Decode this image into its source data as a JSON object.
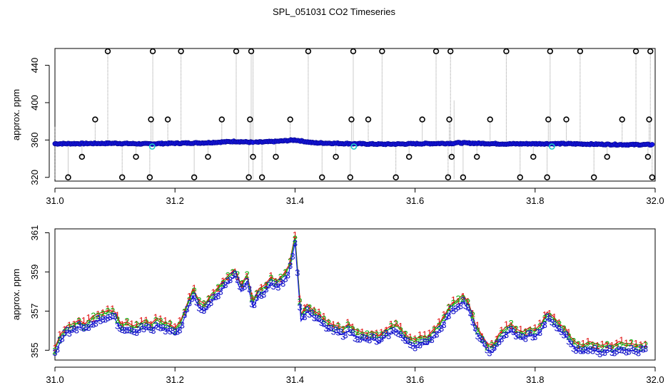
{
  "title": "SPL_051031  CO2 Timeseries",
  "colors": {
    "axis": "#000000",
    "blue_series": "#1414e6",
    "green_point": "#10b010",
    "cyan_point": "#20c8c8",
    "outlier": "#000000",
    "spike_line": "#9a9a9a",
    "digit1": "#e01010",
    "digit2": "#10b010",
    "digit3": "#1414c8"
  },
  "chart_data": [
    {
      "type": "scatter",
      "panel": "top",
      "title": "",
      "xlabel": "",
      "ylabel": "approx. ppm",
      "xlim": [
        31.0,
        32.0
      ],
      "ylim": [
        316,
        458
      ],
      "xticks": [
        31.0,
        31.2,
        31.4,
        31.6,
        31.8,
        32.0
      ],
      "xtick_labels": [
        "31.0",
        "31.2",
        "31.4",
        "31.6",
        "31.8",
        "32.0"
      ],
      "yticks": [
        320,
        360,
        400,
        440
      ],
      "ytick_labels": [
        "320",
        "360",
        "400",
        "440"
      ],
      "segments": [
        {
          "x_start": 31.0,
          "x_end": 31.33,
          "baseline": [
            [
              31.0,
              356.0
            ],
            [
              31.05,
              356.2
            ],
            [
              31.1,
              356.5
            ],
            [
              31.15,
              355.8
            ],
            [
              31.2,
              356.5
            ],
            [
              31.25,
              357.0
            ],
            [
              31.3,
              358.5
            ],
            [
              31.33,
              357.5
            ]
          ]
        },
        {
          "x_start": 31.335,
          "x_end": 31.665,
          "baseline": [
            [
              31.335,
              357.5
            ],
            [
              31.37,
              358.5
            ],
            [
              31.4,
              360.0
            ],
            [
              31.43,
              357.0
            ],
            [
              31.5,
              356.0
            ],
            [
              31.55,
              355.5
            ],
            [
              31.6,
              356.0
            ],
            [
              31.665,
              356.5
            ]
          ]
        },
        {
          "x_start": 31.668,
          "x_end": 31.995,
          "baseline": [
            [
              31.668,
              357.0
            ],
            [
              31.7,
              356.5
            ],
            [
              31.75,
              355.8
            ],
            [
              31.8,
              356.0
            ],
            [
              31.85,
              356.0
            ],
            [
              31.9,
              355.5
            ],
            [
              31.95,
              355.0
            ],
            [
              31.995,
              355.0
            ]
          ]
        }
      ],
      "outliers": [
        {
          "x": 31.022,
          "y": 320
        },
        {
          "x": 31.045,
          "y": 342
        },
        {
          "x": 31.067,
          "y": 382
        },
        {
          "x": 31.088,
          "y": 455
        },
        {
          "x": 31.112,
          "y": 320
        },
        {
          "x": 31.135,
          "y": 342
        },
        {
          "x": 31.158,
          "y": 320
        },
        {
          "x": 31.16,
          "y": 382
        },
        {
          "x": 31.163,
          "y": 455
        },
        {
          "x": 31.188,
          "y": 382
        },
        {
          "x": 31.21,
          "y": 455
        },
        {
          "x": 31.232,
          "y": 320
        },
        {
          "x": 31.255,
          "y": 342
        },
        {
          "x": 31.278,
          "y": 382
        },
        {
          "x": 31.302,
          "y": 455
        },
        {
          "x": 31.323,
          "y": 320
        },
        {
          "x": 31.325,
          "y": 382
        },
        {
          "x": 31.327,
          "y": 455
        },
        {
          "x": 31.33,
          "y": 342
        },
        {
          "x": 31.345,
          "y": 320
        },
        {
          "x": 31.368,
          "y": 342
        },
        {
          "x": 31.392,
          "y": 382
        },
        {
          "x": 31.422,
          "y": 455
        },
        {
          "x": 31.445,
          "y": 320
        },
        {
          "x": 31.468,
          "y": 342
        },
        {
          "x": 31.492,
          "y": 320
        },
        {
          "x": 31.494,
          "y": 382
        },
        {
          "x": 31.497,
          "y": 455
        },
        {
          "x": 31.522,
          "y": 382
        },
        {
          "x": 31.545,
          "y": 455
        },
        {
          "x": 31.568,
          "y": 320
        },
        {
          "x": 31.59,
          "y": 342
        },
        {
          "x": 31.612,
          "y": 382
        },
        {
          "x": 31.635,
          "y": 455
        },
        {
          "x": 31.655,
          "y": 320
        },
        {
          "x": 31.657,
          "y": 382
        },
        {
          "x": 31.659,
          "y": 455
        },
        {
          "x": 31.661,
          "y": 342
        },
        {
          "x": 31.68,
          "y": 320
        },
        {
          "x": 31.703,
          "y": 342
        },
        {
          "x": 31.725,
          "y": 382
        },
        {
          "x": 31.752,
          "y": 455
        },
        {
          "x": 31.775,
          "y": 320
        },
        {
          "x": 31.797,
          "y": 342
        },
        {
          "x": 31.82,
          "y": 320
        },
        {
          "x": 31.822,
          "y": 382
        },
        {
          "x": 31.825,
          "y": 455
        },
        {
          "x": 31.852,
          "y": 382
        },
        {
          "x": 31.875,
          "y": 455
        },
        {
          "x": 31.898,
          "y": 320
        },
        {
          "x": 31.92,
          "y": 342
        },
        {
          "x": 31.945,
          "y": 382
        },
        {
          "x": 31.968,
          "y": 455
        },
        {
          "x": 31.988,
          "y": 342
        },
        {
          "x": 31.99,
          "y": 382
        },
        {
          "x": 31.992,
          "y": 455
        },
        {
          "x": 31.995,
          "y": 320
        }
      ],
      "cyan_points": [
        {
          "x": 31.162,
          "y": 353
        },
        {
          "x": 31.498,
          "y": 353
        },
        {
          "x": 31.828,
          "y": 353
        }
      ]
    },
    {
      "type": "line",
      "panel": "bottom",
      "title": "",
      "xlabel": "",
      "ylabel": "approx. ppm",
      "xlim": [
        31.0,
        32.0
      ],
      "ylim": [
        354.5,
        361.2
      ],
      "xticks": [
        31.0,
        31.2,
        31.4,
        31.6,
        31.8,
        32.0
      ],
      "xtick_labels": [
        "31.0",
        "31.2",
        "31.4",
        "31.6",
        "31.8",
        "32.0"
      ],
      "yticks": [
        355,
        357,
        359,
        361
      ],
      "ytick_labels": [
        "355",
        "357",
        "359",
        "361"
      ],
      "series_labels": [
        "1",
        "2",
        "3"
      ],
      "series_offsets": [
        0.35,
        0.25,
        0.0
      ],
      "curve": [
        [
          31.0,
          354.8
        ],
        [
          31.01,
          355.5
        ],
        [
          31.02,
          355.9
        ],
        [
          31.03,
          356.0
        ],
        [
          31.04,
          356.2
        ],
        [
          31.05,
          356.0
        ],
        [
          31.06,
          356.3
        ],
        [
          31.07,
          356.5
        ],
        [
          31.08,
          356.6
        ],
        [
          31.09,
          356.7
        ],
        [
          31.1,
          356.6
        ],
        [
          31.11,
          356.0
        ],
        [
          31.12,
          356.1
        ],
        [
          31.13,
          355.9
        ],
        [
          31.14,
          356.0
        ],
        [
          31.15,
          356.2
        ],
        [
          31.16,
          356.0
        ],
        [
          31.17,
          356.3
        ],
        [
          31.18,
          356.1
        ],
        [
          31.19,
          356.0
        ],
        [
          31.2,
          355.8
        ],
        [
          31.21,
          356.2
        ],
        [
          31.22,
          357.0
        ],
        [
          31.23,
          357.8
        ],
        [
          31.24,
          357.2
        ],
        [
          31.25,
          357.0
        ],
        [
          31.26,
          357.5
        ],
        [
          31.27,
          357.8
        ],
        [
          31.28,
          358.2
        ],
        [
          31.29,
          358.5
        ],
        [
          31.3,
          358.8
        ],
        [
          31.31,
          358.0
        ],
        [
          31.32,
          358.5
        ],
        [
          31.33,
          357.2
        ],
        [
          31.34,
          357.8
        ],
        [
          31.35,
          358.0
        ],
        [
          31.36,
          358.4
        ],
        [
          31.37,
          358.2
        ],
        [
          31.38,
          358.5
        ],
        [
          31.39,
          359.0
        ],
        [
          31.4,
          360.5
        ],
        [
          31.41,
          356.5
        ],
        [
          31.42,
          357.0
        ],
        [
          31.43,
          356.7
        ],
        [
          31.44,
          356.5
        ],
        [
          31.45,
          356.2
        ],
        [
          31.46,
          356.0
        ],
        [
          31.47,
          355.9
        ],
        [
          31.48,
          355.8
        ],
        [
          31.49,
          356.0
        ],
        [
          31.5,
          355.7
        ],
        [
          31.51,
          355.6
        ],
        [
          31.52,
          355.5
        ],
        [
          31.53,
          355.6
        ],
        [
          31.54,
          355.4
        ],
        [
          31.55,
          355.7
        ],
        [
          31.56,
          355.9
        ],
        [
          31.57,
          356.0
        ],
        [
          31.58,
          355.6
        ],
        [
          31.59,
          355.3
        ],
        [
          31.6,
          355.2
        ],
        [
          31.61,
          355.4
        ],
        [
          31.62,
          355.3
        ],
        [
          31.63,
          355.7
        ],
        [
          31.64,
          356.0
        ],
        [
          31.65,
          356.5
        ],
        [
          31.66,
          357.0
        ],
        [
          31.67,
          357.2
        ],
        [
          31.68,
          357.5
        ],
        [
          31.69,
          357.0
        ],
        [
          31.7,
          356.0
        ],
        [
          31.71,
          355.5
        ],
        [
          31.72,
          355.0
        ],
        [
          31.73,
          354.9
        ],
        [
          31.74,
          355.5
        ],
        [
          31.75,
          355.8
        ],
        [
          31.76,
          356.0
        ],
        [
          31.77,
          355.7
        ],
        [
          31.78,
          355.6
        ],
        [
          31.79,
          355.8
        ],
        [
          31.8,
          355.7
        ],
        [
          31.81,
          356.0
        ],
        [
          31.82,
          356.6
        ],
        [
          31.83,
          356.4
        ],
        [
          31.84,
          356.0
        ],
        [
          31.85,
          355.8
        ],
        [
          31.86,
          355.3
        ],
        [
          31.87,
          355.0
        ],
        [
          31.88,
          354.9
        ],
        [
          31.89,
          355.1
        ],
        [
          31.9,
          355.0
        ],
        [
          31.91,
          354.9
        ],
        [
          31.92,
          355.0
        ],
        [
          31.93,
          354.9
        ],
        [
          31.94,
          355.1
        ],
        [
          31.95,
          355.0
        ],
        [
          31.96,
          355.0
        ],
        [
          31.97,
          354.9
        ],
        [
          31.98,
          355.0
        ]
      ]
    }
  ]
}
